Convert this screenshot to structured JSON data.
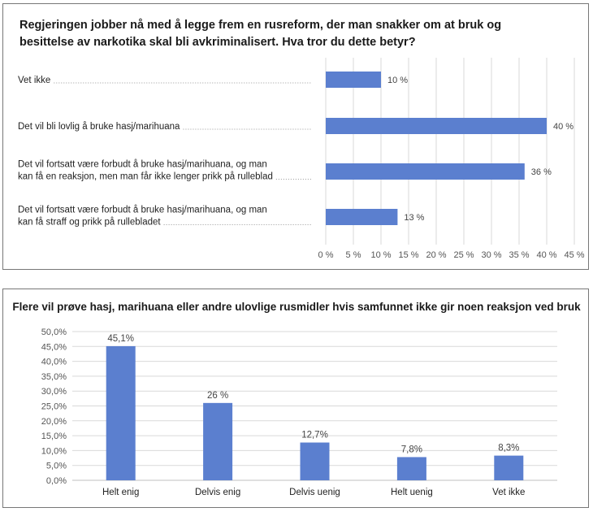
{
  "chart_data": [
    {
      "type": "bar",
      "orientation": "horizontal",
      "title": "Regjeringen jobber nå med å legge frem en rusreform, der man snakker om at bruk og besittelse av narkotika skal bli avkriminalisert. Hva tror du dette betyr?",
      "categories": [
        [
          "Vet ikke"
        ],
        [
          "Det vil bli lovlig å bruke hasj/marihuana"
        ],
        [
          "Det vil fortsatt være forbudt å bruke hasj/marihuana, og man",
          "kan få en reaksjon, men man får ikke lenger prikk på rulleblad"
        ],
        [
          "Det vil fortsatt være forbudt å bruke hasj/marihuana, og man",
          "kan få straff og prikk på rullebladet"
        ]
      ],
      "values": [
        10,
        40,
        36,
        13
      ],
      "data_labels": [
        "10 %",
        "40 %",
        "36 %",
        "13 %"
      ],
      "xlim": [
        0,
        45
      ],
      "xticks": [
        "0 %",
        "5 %",
        "10 %",
        "15 %",
        "20 %",
        "25 %",
        "30 %",
        "35 %",
        "40 %",
        "45 %"
      ],
      "color": "#5b7fcf",
      "grid": "vertical"
    },
    {
      "type": "bar",
      "orientation": "vertical",
      "title": "Flere vil prøve hasj, marihuana eller andre ulovlige rusmidler hvis samfunnet ikke gir noen reaksjon ved bruk",
      "categories": [
        "Helt enig",
        "Delvis enig",
        "Delvis uenig",
        "Helt uenig",
        "Vet ikke"
      ],
      "values": [
        45.1,
        26,
        12.7,
        7.8,
        8.3
      ],
      "data_labels": [
        "45,1%",
        "26 %",
        "12,7%",
        "7,8%",
        "8,3%"
      ],
      "ylim": [
        0,
        50
      ],
      "yticks": [
        "0,0%",
        "5,0%",
        "10,0%",
        "15,0%",
        "20,0%",
        "25,0%",
        "30,0%",
        "35,0%",
        "40,0%",
        "45,0%",
        "50,0%"
      ],
      "color": "#5b7fcf",
      "grid": "horizontal"
    }
  ]
}
